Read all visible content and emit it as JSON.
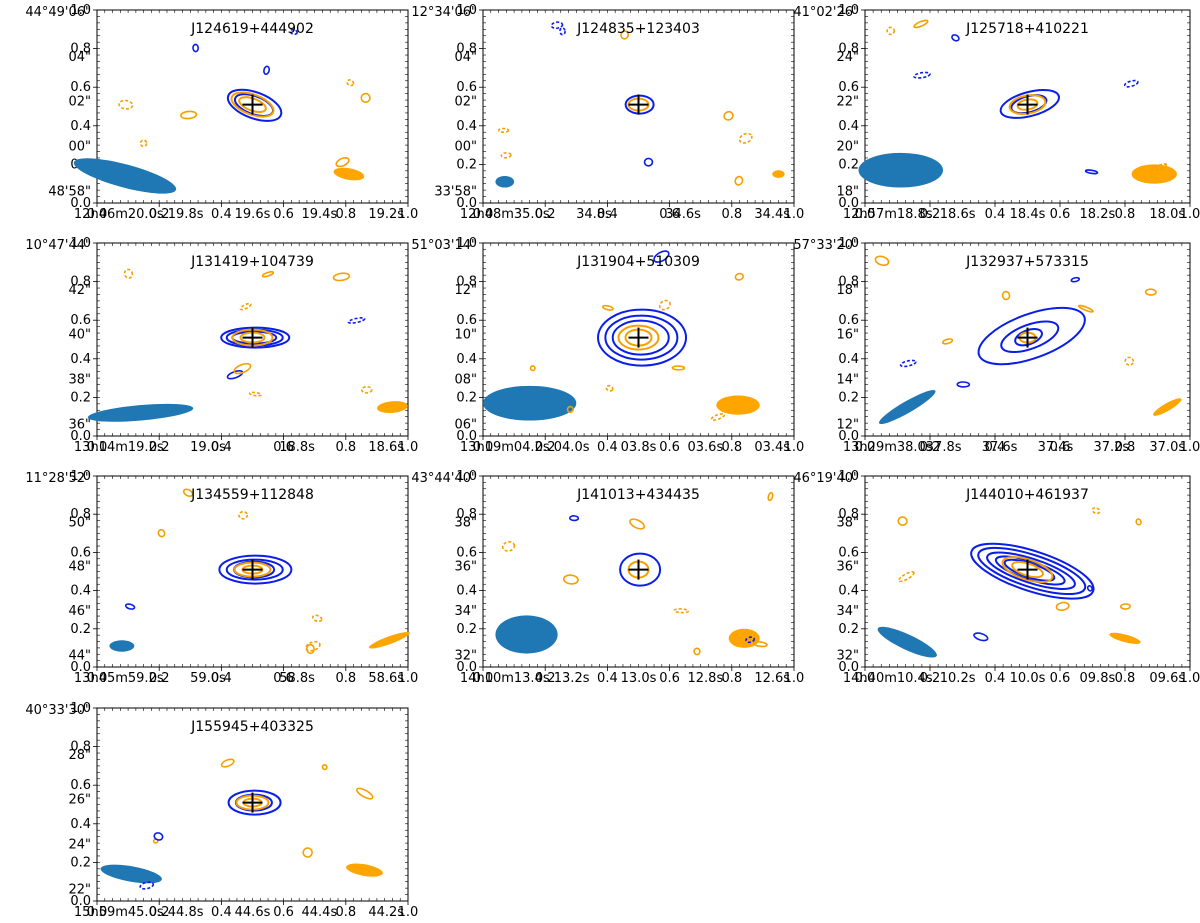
{
  "figure": {
    "description_free": true,
    "contour_colors": {
      "radio": "#0a1ee8",
      "optical": "#f5a000",
      "beam_radio": "#1f77b4",
      "beam_optical": "#ffa500",
      "marker": "#000000"
    }
  },
  "chart_data": [
    {
      "type": "contour",
      "title": "J124619+444902",
      "xlim": [
        0,
        1
      ],
      "ylim": [
        0,
        1
      ],
      "frame_ticks": {
        "x": [
          "0.0",
          "0.2",
          "0.4",
          "0.6",
          "0.8",
          "1.0"
        ],
        "y": [
          "0.0",
          "0.2",
          "0.4",
          "0.6",
          "0.8",
          "1.0"
        ]
      },
      "ra_ticks": [
        "12h46m20.0s",
        "19.8s",
        "19.6s",
        "19.4s",
        "19.2s"
      ],
      "dec_ticks": [
        "44°49'06\"",
        "04\"",
        "02\"",
        "00\"",
        "48'58\""
      ],
      "source_position": [
        0.5,
        0.51
      ]
    },
    {
      "type": "contour",
      "title": "J124835+123403",
      "xlim": [
        0,
        1
      ],
      "ylim": [
        0,
        1
      ],
      "frame_ticks": {
        "x": [
          "0.0",
          "0.2",
          "0.4",
          "0.6",
          "0.8",
          "1.0"
        ],
        "y": [
          "0.0",
          "0.2",
          "0.4",
          "0.6",
          "0.8",
          "1.0"
        ]
      },
      "ra_ticks": [
        "12h48m35.0s",
        "34.8s",
        "34.6s",
        "34.4s"
      ],
      "dec_ticks": [
        "12°34'06\"",
        "04\"",
        "02\"",
        "00\"",
        "33'58\""
      ],
      "source_position": [
        0.5,
        0.51
      ]
    },
    {
      "type": "contour",
      "title": "J125718+410221",
      "xlim": [
        0,
        1
      ],
      "ylim": [
        0,
        1
      ],
      "frame_ticks": {
        "x": [
          "0.0",
          "0.2",
          "0.4",
          "0.6",
          "0.8",
          "1.0"
        ],
        "y": [
          "0.0",
          "0.2",
          "0.4",
          "0.6",
          "0.8",
          "1.0"
        ]
      },
      "ra_ticks": [
        "12h57m18.8s",
        "18.6s",
        "18.4s",
        "18.2s",
        "18.0s"
      ],
      "dec_ticks": [
        "41°02'26\"",
        "24\"",
        "22\"",
        "20\"",
        "18\""
      ],
      "source_position": [
        0.5,
        0.51
      ]
    },
    {
      "type": "contour",
      "title": "J131419+104739",
      "xlim": [
        0,
        1
      ],
      "ylim": [
        0,
        1
      ],
      "frame_ticks": {
        "x": [
          "0.0",
          "0.2",
          "0.4",
          "0.6",
          "0.8",
          "1.0"
        ],
        "y": [
          "0.0",
          "0.2",
          "0.4",
          "0.6",
          "0.8",
          "1.0"
        ]
      },
      "ra_ticks": [
        "13h14m19.2s",
        "19.0s",
        "18.8s",
        "18.6s"
      ],
      "dec_ticks": [
        "10°47'44\"",
        "42\"",
        "40\"",
        "38\"",
        "36\""
      ],
      "source_position": [
        0.5,
        0.51
      ]
    },
    {
      "type": "contour",
      "title": "J131904+510309",
      "xlim": [
        0,
        1
      ],
      "ylim": [
        0,
        1
      ],
      "frame_ticks": {
        "x": [
          "0.0",
          "0.2",
          "0.4",
          "0.6",
          "0.8",
          "1.0"
        ],
        "y": [
          "0.0",
          "0.2",
          "0.4",
          "0.6",
          "0.8",
          "1.0"
        ]
      },
      "ra_ticks": [
        "13h19m04.2s",
        "04.0s",
        "03.8s",
        "03.6s",
        "03.4s"
      ],
      "dec_ticks": [
        "51°03'14\"",
        "12\"",
        "10\"",
        "08\"",
        "06\""
      ],
      "source_position": [
        0.5,
        0.51
      ]
    },
    {
      "type": "contour",
      "title": "J132937+573315",
      "xlim": [
        0,
        1
      ],
      "ylim": [
        0,
        1
      ],
      "frame_ticks": {
        "x": [
          "0.0",
          "0.2",
          "0.4",
          "0.6",
          "0.8",
          "1.0"
        ],
        "y": [
          "0.0",
          "0.2",
          "0.4",
          "0.6",
          "0.8",
          "1.0"
        ]
      },
      "ra_ticks": [
        "13h29m38.0s",
        "37.8s",
        "37.6s",
        "37.4s",
        "37.2s",
        "37.0s"
      ],
      "dec_ticks": [
        "57°33'20\"",
        "18\"",
        "16\"",
        "14\"",
        "12\""
      ],
      "source_position": [
        0.5,
        0.51
      ]
    },
    {
      "type": "contour",
      "title": "J134559+112848",
      "xlim": [
        0,
        1
      ],
      "ylim": [
        0,
        1
      ],
      "frame_ticks": {
        "x": [
          "0.0",
          "0.2",
          "0.4",
          "0.6",
          "0.8",
          "1.0"
        ],
        "y": [
          "0.0",
          "0.2",
          "0.4",
          "0.6",
          "0.8",
          "1.0"
        ]
      },
      "ra_ticks": [
        "13h45m59.2s",
        "59.0s",
        "58.8s",
        "58.6s"
      ],
      "dec_ticks": [
        "11°28'52\"",
        "50\"",
        "48\"",
        "46\"",
        "44\""
      ],
      "source_position": [
        0.5,
        0.51
      ]
    },
    {
      "type": "contour",
      "title": "J141013+434435",
      "xlim": [
        0,
        1
      ],
      "ylim": [
        0,
        1
      ],
      "frame_ticks": {
        "x": [
          "0.0",
          "0.2",
          "0.4",
          "0.6",
          "0.8",
          "1.0"
        ],
        "y": [
          "0.0",
          "0.2",
          "0.4",
          "0.6",
          "0.8",
          "1.0"
        ]
      },
      "ra_ticks": [
        "14h10m13.4s",
        "13.2s",
        "13.0s",
        "12.8s",
        "12.6s"
      ],
      "dec_ticks": [
        "43°44'40\"",
        "38\"",
        "36\"",
        "34\"",
        "32\""
      ],
      "source_position": [
        0.5,
        0.51
      ]
    },
    {
      "type": "contour",
      "title": "J144010+461937",
      "xlim": [
        0,
        1
      ],
      "ylim": [
        0,
        1
      ],
      "frame_ticks": {
        "x": [
          "0.0",
          "0.2",
          "0.4",
          "0.6",
          "0.8",
          "1.0"
        ],
        "y": [
          "0.0",
          "0.2",
          "0.4",
          "0.6",
          "0.8",
          "1.0"
        ]
      },
      "ra_ticks": [
        "14h40m10.4s",
        "10.2s",
        "10.0s",
        "09.8s",
        "09.6s"
      ],
      "dec_ticks": [
        "46°19'40\"",
        "38\"",
        "36\"",
        "34\"",
        "32\""
      ],
      "source_position": [
        0.5,
        0.51
      ]
    },
    {
      "type": "contour",
      "title": "J155945+403325",
      "xlim": [
        0,
        1
      ],
      "ylim": [
        0,
        1
      ],
      "frame_ticks": {
        "x": [
          "0.0",
          "0.2",
          "0.4",
          "0.6",
          "0.8",
          "1.0"
        ],
        "y": [
          "0.0",
          "0.2",
          "0.4",
          "0.6",
          "0.8",
          "1.0"
        ]
      },
      "ra_ticks": [
        "15h59m45.0s",
        "44.8s",
        "44.6s",
        "44.4s",
        "44.2s"
      ],
      "dec_ticks": [
        "40°33'30\"",
        "28\"",
        "26\"",
        "24\"",
        "22\""
      ],
      "source_position": [
        0.5,
        0.51
      ]
    }
  ]
}
